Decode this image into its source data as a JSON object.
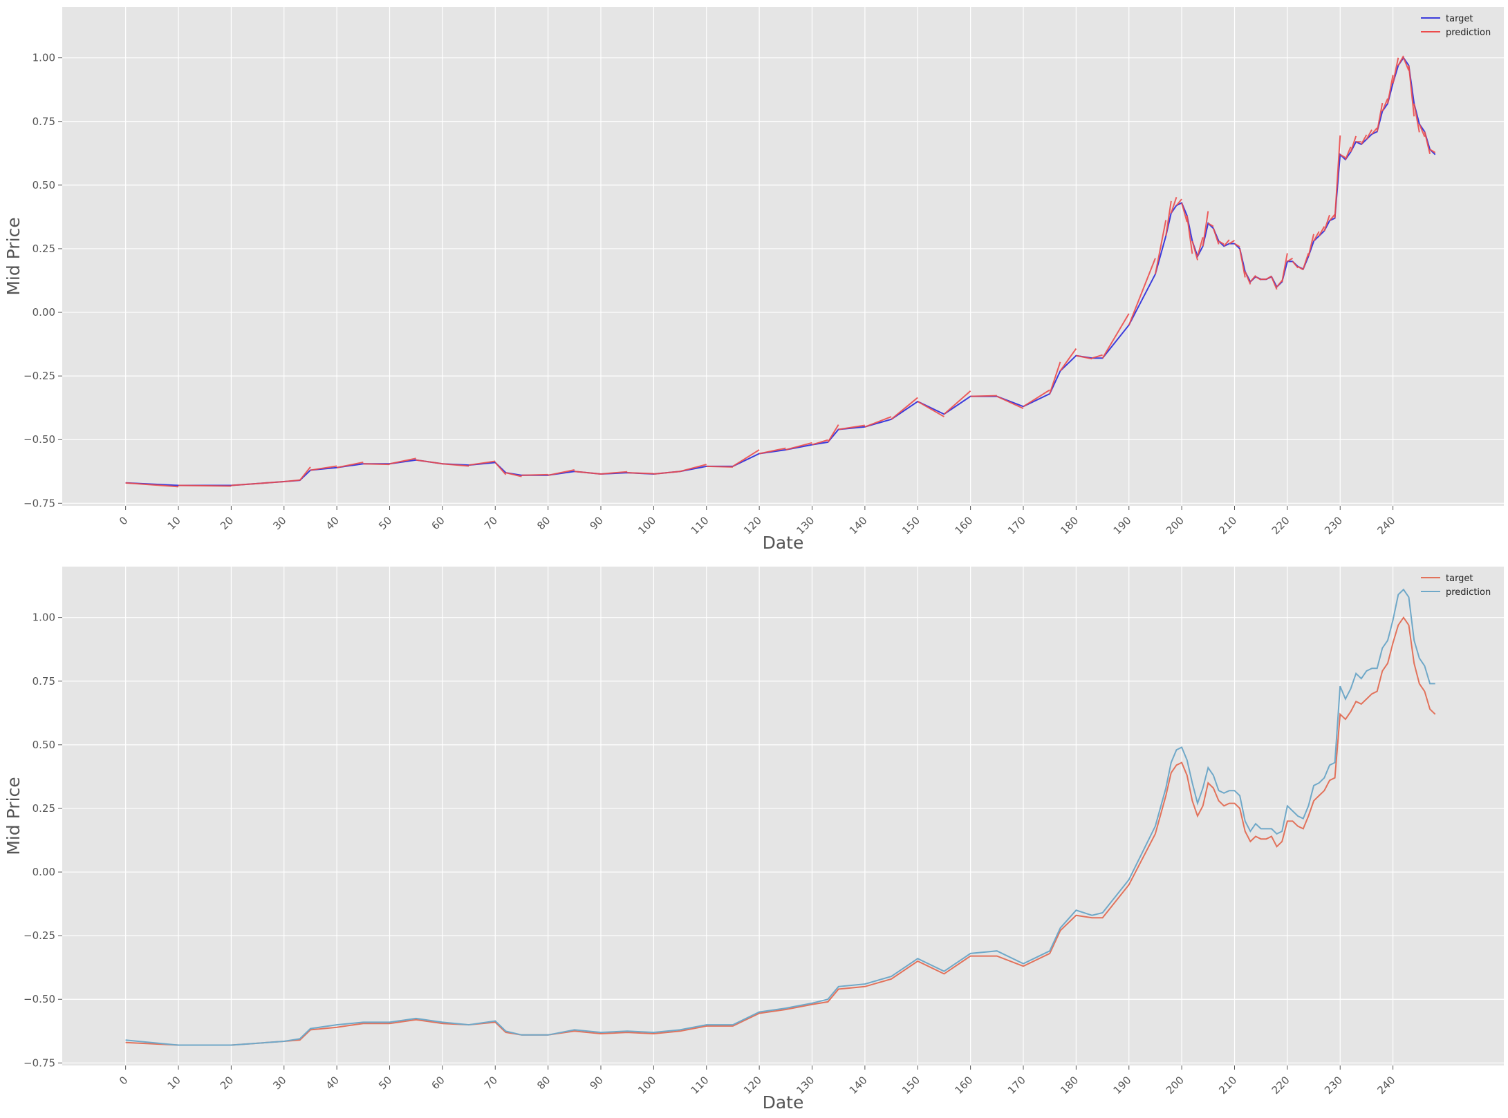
{
  "figure": {
    "background": "#ffffff",
    "plot_background": "#e5e5e5",
    "grid_color": "#ffffff"
  },
  "chart_data": [
    {
      "type": "line",
      "variant": "segmented-forecast",
      "xlabel": "Date",
      "ylabel": "Mid Price",
      "xlim": [
        -12,
        261
      ],
      "ylim": [
        -0.76,
        1.2
      ],
      "xticks": [
        0,
        10,
        20,
        30,
        40,
        50,
        60,
        70,
        80,
        90,
        100,
        110,
        120,
        130,
        140,
        150,
        160,
        170,
        180,
        190,
        200,
        210,
        220,
        230,
        240
      ],
      "xtick_labels": [
        "0",
        "10",
        "20",
        "30",
        "40",
        "50",
        "60",
        "70",
        "80",
        "90",
        "100",
        "110",
        "120",
        "130",
        "140",
        "150",
        "160",
        "170",
        "180",
        "190",
        "200",
        "210",
        "220",
        "230",
        "240"
      ],
      "yticks": [
        -0.75,
        -0.5,
        -0.25,
        0.0,
        0.25,
        0.5,
        0.75,
        1.0
      ],
      "ytick_labels": [
        "−0.75",
        "−0.50",
        "−0.25",
        "0.00",
        "0.25",
        "0.50",
        "0.75",
        "1.00"
      ],
      "grid": true,
      "legend_position": "top-right",
      "legend": [
        {
          "label": "target",
          "color": "#3b3bdc"
        },
        {
          "label": "prediction",
          "color": "#ec4b4b"
        }
      ],
      "x": [
        0,
        10,
        20,
        30,
        33,
        35,
        40,
        45,
        50,
        55,
        60,
        65,
        70,
        72,
        75,
        80,
        85,
        90,
        95,
        100,
        105,
        110,
        115,
        120,
        125,
        130,
        133,
        135,
        140,
        145,
        150,
        155,
        160,
        165,
        170,
        175,
        177,
        180,
        183,
        185,
        190,
        195,
        197,
        198,
        199,
        200,
        201,
        202,
        203,
        204,
        205,
        206,
        207,
        208,
        209,
        210,
        211,
        212,
        213,
        214,
        215,
        216,
        217,
        218,
        219,
        220,
        221,
        222,
        223,
        224,
        225,
        226,
        227,
        228,
        229,
        230,
        231,
        232,
        233,
        234,
        235,
        236,
        237,
        238,
        239,
        240,
        241,
        242,
        243,
        244,
        245,
        246,
        247,
        248
      ],
      "series": [
        {
          "name": "target",
          "color": "#3b3bdc",
          "values": [
            -0.67,
            -0.68,
            -0.68,
            -0.665,
            -0.66,
            -0.62,
            -0.61,
            -0.595,
            -0.595,
            -0.58,
            -0.595,
            -0.6,
            -0.59,
            -0.63,
            -0.64,
            -0.64,
            -0.625,
            -0.635,
            -0.63,
            -0.635,
            -0.625,
            -0.605,
            -0.605,
            -0.555,
            -0.54,
            -0.52,
            -0.51,
            -0.46,
            -0.45,
            -0.42,
            -0.35,
            -0.4,
            -0.33,
            -0.33,
            -0.37,
            -0.32,
            -0.23,
            -0.17,
            -0.18,
            -0.18,
            -0.05,
            0.15,
            0.3,
            0.39,
            0.42,
            0.43,
            0.38,
            0.28,
            0.22,
            0.26,
            0.35,
            0.33,
            0.28,
            0.26,
            0.27,
            0.27,
            0.25,
            0.16,
            0.12,
            0.14,
            0.13,
            0.13,
            0.14,
            0.1,
            0.12,
            0.2,
            0.2,
            0.18,
            0.17,
            0.22,
            0.28,
            0.3,
            0.32,
            0.36,
            0.37,
            0.62,
            0.6,
            0.63,
            0.67,
            0.66,
            0.68,
            0.7,
            0.71,
            0.79,
            0.82,
            0.9,
            0.97,
            1.0,
            0.97,
            0.82,
            0.74,
            0.71,
            0.64,
            0.62
          ]
        },
        {
          "name": "prediction",
          "color": "#ec4b4b",
          "values": [
            -0.668,
            -0.682,
            -0.682,
            -0.668,
            -0.66,
            -0.618,
            -0.607,
            -0.593,
            -0.597,
            -0.578,
            -0.592,
            -0.602,
            -0.588,
            -0.628,
            -0.642,
            -0.638,
            -0.623,
            -0.633,
            -0.628,
            -0.633,
            -0.627,
            -0.603,
            -0.607,
            -0.553,
            -0.538,
            -0.518,
            -0.505,
            -0.455,
            -0.447,
            -0.418,
            -0.352,
            -0.398,
            -0.327,
            -0.328,
            -0.368,
            -0.318,
            -0.22,
            -0.16,
            -0.18,
            -0.17,
            -0.04,
            0.16,
            0.32,
            0.41,
            0.44,
            0.44,
            0.37,
            0.26,
            0.22,
            0.28,
            0.37,
            0.34,
            0.28,
            0.27,
            0.28,
            0.28,
            0.26,
            0.16,
            0.12,
            0.14,
            0.13,
            0.13,
            0.14,
            0.1,
            0.12,
            0.21,
            0.21,
            0.18,
            0.17,
            0.22,
            0.29,
            0.31,
            0.33,
            0.37,
            0.38,
            0.63,
            0.61,
            0.64,
            0.68,
            0.67,
            0.69,
            0.71,
            0.72,
            0.8,
            0.83,
            0.91,
            0.98,
            1.0,
            0.96,
            0.81,
            0.73,
            0.7,
            0.64,
            0.63
          ]
        }
      ]
    },
    {
      "type": "line",
      "xlabel": "Date",
      "ylabel": "Mid Price",
      "xlim": [
        -12,
        261
      ],
      "ylim": [
        -0.76,
        1.2
      ],
      "xticks": [
        0,
        10,
        20,
        30,
        40,
        50,
        60,
        70,
        80,
        90,
        100,
        110,
        120,
        130,
        140,
        150,
        160,
        170,
        180,
        190,
        200,
        210,
        220,
        230,
        240
      ],
      "xtick_labels": [
        "0",
        "10",
        "20",
        "30",
        "40",
        "50",
        "60",
        "70",
        "80",
        "90",
        "100",
        "110",
        "120",
        "130",
        "140",
        "150",
        "160",
        "170",
        "180",
        "190",
        "200",
        "210",
        "220",
        "230",
        "240"
      ],
      "yticks": [
        -0.75,
        -0.5,
        -0.25,
        0.0,
        0.25,
        0.5,
        0.75,
        1.0
      ],
      "ytick_labels": [
        "−0.75",
        "−0.50",
        "−0.25",
        "0.00",
        "0.25",
        "0.50",
        "0.75",
        "1.00"
      ],
      "grid": true,
      "legend_position": "top-right",
      "legend": [
        {
          "label": "target",
          "color": "#e2725b"
        },
        {
          "label": "prediction",
          "color": "#6fa8c8"
        }
      ],
      "x": [
        0,
        10,
        20,
        30,
        33,
        35,
        40,
        45,
        50,
        55,
        60,
        65,
        70,
        72,
        75,
        80,
        85,
        90,
        95,
        100,
        105,
        110,
        115,
        120,
        125,
        130,
        133,
        135,
        140,
        145,
        150,
        155,
        160,
        165,
        170,
        175,
        177,
        180,
        183,
        185,
        190,
        195,
        197,
        198,
        199,
        200,
        201,
        202,
        203,
        204,
        205,
        206,
        207,
        208,
        209,
        210,
        211,
        212,
        213,
        214,
        215,
        216,
        217,
        218,
        219,
        220,
        221,
        222,
        223,
        224,
        225,
        226,
        227,
        228,
        229,
        230,
        231,
        232,
        233,
        234,
        235,
        236,
        237,
        238,
        239,
        240,
        241,
        242,
        243,
        244,
        245,
        246,
        247,
        248
      ],
      "series": [
        {
          "name": "target",
          "color": "#e2725b",
          "values": [
            -0.67,
            -0.68,
            -0.68,
            -0.665,
            -0.66,
            -0.62,
            -0.61,
            -0.595,
            -0.595,
            -0.58,
            -0.595,
            -0.6,
            -0.59,
            -0.63,
            -0.64,
            -0.64,
            -0.625,
            -0.635,
            -0.63,
            -0.635,
            -0.625,
            -0.605,
            -0.605,
            -0.555,
            -0.54,
            -0.52,
            -0.51,
            -0.46,
            -0.45,
            -0.42,
            -0.35,
            -0.4,
            -0.33,
            -0.33,
            -0.37,
            -0.32,
            -0.23,
            -0.17,
            -0.18,
            -0.18,
            -0.05,
            0.15,
            0.3,
            0.39,
            0.42,
            0.43,
            0.38,
            0.28,
            0.22,
            0.26,
            0.35,
            0.33,
            0.28,
            0.26,
            0.27,
            0.27,
            0.25,
            0.16,
            0.12,
            0.14,
            0.13,
            0.13,
            0.14,
            0.1,
            0.12,
            0.2,
            0.2,
            0.18,
            0.17,
            0.22,
            0.28,
            0.3,
            0.32,
            0.36,
            0.37,
            0.62,
            0.6,
            0.63,
            0.67,
            0.66,
            0.68,
            0.7,
            0.71,
            0.79,
            0.82,
            0.9,
            0.97,
            1.0,
            0.97,
            0.82,
            0.74,
            0.71,
            0.64,
            0.62
          ]
        },
        {
          "name": "prediction",
          "color": "#6fa8c8",
          "values": [
            -0.66,
            -0.68,
            -0.68,
            -0.665,
            -0.655,
            -0.615,
            -0.6,
            -0.59,
            -0.59,
            -0.575,
            -0.59,
            -0.6,
            -0.585,
            -0.625,
            -0.64,
            -0.64,
            -0.62,
            -0.63,
            -0.625,
            -0.63,
            -0.62,
            -0.6,
            -0.6,
            -0.55,
            -0.535,
            -0.515,
            -0.5,
            -0.45,
            -0.44,
            -0.41,
            -0.34,
            -0.39,
            -0.32,
            -0.31,
            -0.36,
            -0.31,
            -0.22,
            -0.15,
            -0.17,
            -0.16,
            -0.03,
            0.18,
            0.33,
            0.43,
            0.48,
            0.49,
            0.44,
            0.35,
            0.27,
            0.33,
            0.41,
            0.38,
            0.32,
            0.31,
            0.32,
            0.32,
            0.3,
            0.2,
            0.16,
            0.19,
            0.17,
            0.17,
            0.17,
            0.15,
            0.16,
            0.26,
            0.24,
            0.22,
            0.21,
            0.26,
            0.34,
            0.35,
            0.37,
            0.42,
            0.43,
            0.73,
            0.68,
            0.72,
            0.78,
            0.76,
            0.79,
            0.8,
            0.8,
            0.88,
            0.91,
            0.99,
            1.09,
            1.11,
            1.08,
            0.91,
            0.84,
            0.81,
            0.74,
            0.74
          ]
        }
      ]
    }
  ]
}
